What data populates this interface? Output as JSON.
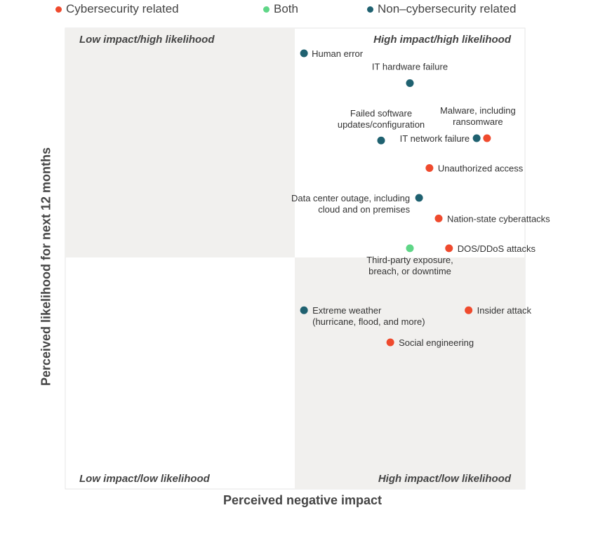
{
  "legend": {
    "cyber": "Cybersecurity related",
    "both": "Both",
    "non_cyber": "Non–cybersecurity related"
  },
  "colors": {
    "cyber": "#ef4a2d",
    "both": "#5fd687",
    "non_cyber": "#1f6170",
    "quadrant_shade": "#f1f0ee"
  },
  "chart_data": {
    "type": "scatter",
    "xlabel": "Perceived negative impact",
    "ylabel": "Perceived likelihood for next 12 months",
    "grid": false,
    "legend_position": "top",
    "quadrants": {
      "top_left": "Low impact/high likelihood",
      "top_right": "High impact/high likelihood",
      "bottom_left": "Low impact/low likelihood",
      "bottom_right": "High impact/low likelihood"
    },
    "points": [
      {
        "label": "Human error",
        "category": "non_cyber",
        "x": 0.04,
        "y": 0.89
      },
      {
        "label": "IT hardware failure",
        "category": "non_cyber",
        "x": 0.5,
        "y": 0.76
      },
      {
        "label": "Failed software updates/configuration",
        "category": "non_cyber",
        "x": 0.375,
        "y": 0.51
      },
      {
        "label": "IT network failure",
        "category": "non_cyber",
        "x": 0.79,
        "y": 0.52
      },
      {
        "label": "Malware, including ransomware",
        "category": "cyber",
        "x": 0.835,
        "y": 0.52
      },
      {
        "label": "Unauthorized access",
        "category": "cyber",
        "x": 0.585,
        "y": 0.39
      },
      {
        "label": "Data center outage, including cloud and on premises",
        "category": "non_cyber",
        "x": 0.54,
        "y": 0.26
      },
      {
        "label": "Nation-state cyberattacks",
        "category": "cyber",
        "x": 0.625,
        "y": 0.17
      },
      {
        "label": "DOS/DDoS attacks",
        "category": "cyber",
        "x": 0.67,
        "y": 0.04
      },
      {
        "label": "Third-party exposure, breach, or downtime",
        "category": "both",
        "x": 0.5,
        "y": 0.04
      },
      {
        "label": "Extreme weather (hurricane, flood, and more)",
        "category": "non_cyber",
        "x": 0.04,
        "y": -0.23
      },
      {
        "label": "Insider attack",
        "category": "cyber",
        "x": 0.755,
        "y": -0.23
      },
      {
        "label": "Social engineering",
        "category": "cyber",
        "x": 0.415,
        "y": -0.37
      }
    ]
  }
}
